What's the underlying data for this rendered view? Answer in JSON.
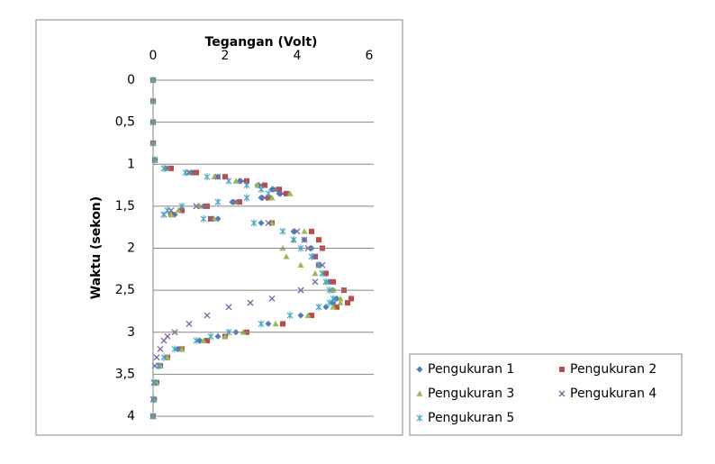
{
  "chart_data": {
    "type": "scatter",
    "x_label": "Tegangan (Volt)",
    "y_label": "Waktu (sekon)",
    "xlim": [
      0,
      6
    ],
    "xticks": [
      0,
      2,
      4,
      6
    ],
    "ylim": [
      0,
      4
    ],
    "y_inverted": true,
    "yticks": [
      0,
      {
        "value": 0.5,
        "label": "0,5"
      },
      1,
      {
        "value": 1.5,
        "label": "1,5"
      },
      2,
      {
        "value": 2.5,
        "label": "2,5"
      },
      3,
      {
        "value": 3.5,
        "label": "3,5"
      },
      4
    ],
    "grid": true,
    "legend": "bottom-right",
    "series": [
      {
        "name": "Pengukuran 1",
        "color": "#4a7ebb",
        "marker": "diamond",
        "x": [
          0,
          0,
          0,
          0,
          0.05,
          0.4,
          1.1,
          1.8,
          2.4,
          2.9,
          3.3,
          3.5,
          3.0,
          2.2,
          1.4,
          0.8,
          0.6,
          1.8,
          3.0,
          3.9,
          4.2,
          4.4,
          4.5,
          4.6,
          4.8,
          4.9,
          5.0,
          5.1,
          5.0,
          4.8,
          4.1,
          3.2,
          2.3,
          1.8,
          1.3,
          0.7,
          0.4,
          0.2,
          0.1,
          0.03,
          0
        ],
        "values": [
          0,
          0.25,
          0.5,
          0.75,
          0.95,
          1.05,
          1.1,
          1.15,
          1.2,
          1.25,
          1.3,
          1.35,
          1.4,
          1.45,
          1.5,
          1.55,
          1.6,
          1.65,
          1.7,
          1.8,
          1.9,
          2.0,
          2.1,
          2.2,
          2.3,
          2.4,
          2.5,
          2.6,
          2.65,
          2.7,
          2.8,
          2.9,
          3.0,
          3.05,
          3.1,
          3.2,
          3.3,
          3.4,
          3.6,
          3.8,
          4.0
        ]
      },
      {
        "name": "Pengukuran 2",
        "color": "#be4b48",
        "marker": "square",
        "x": [
          0,
          0,
          0,
          0,
          0.05,
          0.5,
          1.2,
          2.0,
          2.6,
          3.1,
          3.5,
          3.7,
          3.2,
          2.4,
          1.5,
          0.8,
          0.5,
          1.6,
          3.3,
          4.4,
          4.6,
          4.7,
          4.5,
          4.6,
          4.8,
          5.0,
          5.3,
          5.5,
          5.4,
          5.1,
          4.4,
          3.6,
          2.6,
          2.0,
          1.5,
          0.8,
          0.4,
          0.2,
          0.1,
          0.03,
          0
        ],
        "values": [
          0,
          0.25,
          0.5,
          0.75,
          0.95,
          1.05,
          1.1,
          1.15,
          1.2,
          1.25,
          1.3,
          1.35,
          1.4,
          1.45,
          1.5,
          1.55,
          1.6,
          1.65,
          1.7,
          1.8,
          1.9,
          2.0,
          2.1,
          2.2,
          2.3,
          2.4,
          2.5,
          2.6,
          2.65,
          2.7,
          2.8,
          2.9,
          3.0,
          3.05,
          3.1,
          3.2,
          3.3,
          3.4,
          3.6,
          3.8,
          4.0
        ]
      },
      {
        "name": "Pengukuran 3",
        "color": "#98b954",
        "marker": "triangle",
        "x": [
          0,
          0,
          0,
          0,
          0.05,
          0.4,
          1.0,
          1.7,
          2.3,
          2.9,
          3.4,
          3.8,
          3.3,
          2.3,
          1.3,
          0.7,
          0.5,
          1.7,
          3.3,
          4.2,
          3.9,
          3.6,
          3.7,
          4.1,
          4.5,
          4.8,
          5.0,
          5.2,
          5.2,
          5.0,
          4.3,
          3.4,
          2.5,
          2.0,
          1.4,
          0.8,
          0.4,
          0.2,
          0.1,
          0.03,
          0
        ],
        "values": [
          0,
          0.25,
          0.5,
          0.75,
          0.95,
          1.05,
          1.1,
          1.15,
          1.2,
          1.25,
          1.3,
          1.35,
          1.4,
          1.45,
          1.5,
          1.55,
          1.6,
          1.65,
          1.7,
          1.8,
          1.9,
          2.0,
          2.1,
          2.2,
          2.3,
          2.4,
          2.5,
          2.6,
          2.65,
          2.7,
          2.8,
          2.9,
          3.0,
          3.05,
          3.1,
          3.2,
          3.3,
          3.4,
          3.6,
          3.8,
          4.0
        ]
      },
      {
        "name": "Pengukuran 4",
        "color": "#7d60a0",
        "marker": "x",
        "x": [
          0,
          0,
          0,
          0,
          0.05,
          0.4,
          1.0,
          1.8,
          2.5,
          3.0,
          3.4,
          3.6,
          3.1,
          2.3,
          1.2,
          0.5,
          0.3,
          1.6,
          3.2,
          4.0,
          4.2,
          4.3,
          4.5,
          4.7,
          4.7,
          4.5,
          4.1,
          3.3,
          2.7,
          2.1,
          1.5,
          1.0,
          0.6,
          0.4,
          0.3,
          0.2,
          0.1,
          0.05,
          0.02,
          0,
          0
        ],
        "values": [
          0,
          0.25,
          0.5,
          0.75,
          0.95,
          1.05,
          1.1,
          1.15,
          1.2,
          1.25,
          1.3,
          1.35,
          1.4,
          1.45,
          1.5,
          1.55,
          1.6,
          1.65,
          1.7,
          1.8,
          1.9,
          2.0,
          2.1,
          2.2,
          2.3,
          2.4,
          2.5,
          2.6,
          2.65,
          2.7,
          2.8,
          2.9,
          3.0,
          3.05,
          3.1,
          3.2,
          3.3,
          3.4,
          3.6,
          3.8,
          4.0
        ]
      },
      {
        "name": "Pengukuran 5",
        "color": "#46aac5",
        "marker": "star",
        "x": [
          0,
          0,
          0,
          0,
          0.05,
          0.3,
          0.9,
          1.5,
          2.1,
          2.6,
          3.0,
          3.2,
          2.6,
          1.8,
          0.8,
          0.4,
          0.3,
          1.4,
          2.8,
          3.6,
          3.9,
          4.1,
          4.4,
          4.6,
          4.7,
          4.8,
          4.9,
          5.0,
          4.9,
          4.6,
          3.8,
          3.0,
          2.1,
          1.6,
          1.2,
          0.6,
          0.3,
          0.15,
          0.05,
          0.02,
          0
        ],
        "values": [
          0,
          0.25,
          0.5,
          0.75,
          0.95,
          1.05,
          1.1,
          1.15,
          1.2,
          1.25,
          1.3,
          1.35,
          1.4,
          1.45,
          1.5,
          1.55,
          1.6,
          1.65,
          1.7,
          1.8,
          1.9,
          2.0,
          2.1,
          2.2,
          2.3,
          2.4,
          2.5,
          2.6,
          2.65,
          2.7,
          2.8,
          2.9,
          3.0,
          3.05,
          3.1,
          3.2,
          3.3,
          3.4,
          3.6,
          3.8,
          4.0
        ]
      }
    ]
  }
}
